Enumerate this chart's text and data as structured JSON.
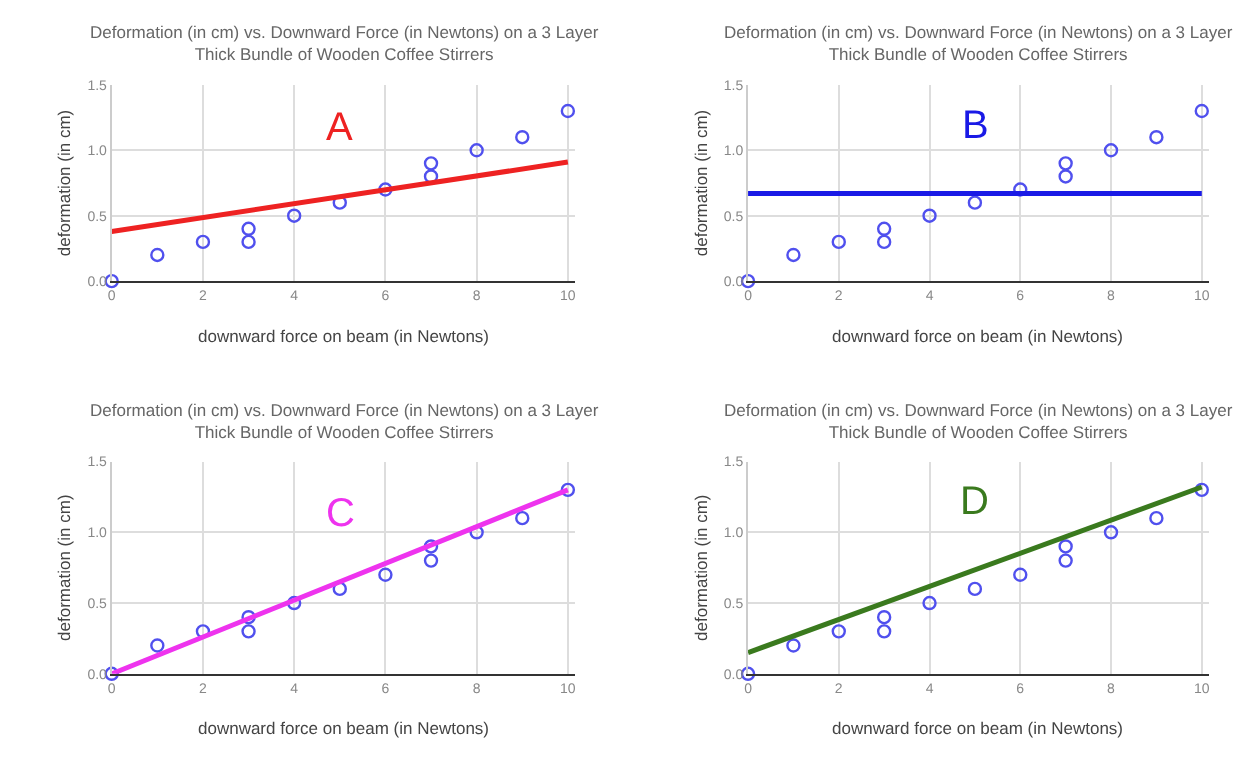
{
  "chart_data": [
    {
      "type": "scatter",
      "title": "Deformation (in cm) vs. Downward Force (in Newtons) on a 3 Layer\nThick Bundle of Wooden Coffee Stirrers",
      "xlabel": "downward force on beam (in Newtons)",
      "ylabel": "deformation (in cm)",
      "xlim": [
        0,
        10.15
      ],
      "xticks": [
        0,
        2,
        4,
        6,
        8,
        10
      ],
      "ylim": [
        0,
        1.5
      ],
      "yticks": [
        {
          "value": 0,
          "label": "0.0"
        },
        {
          "value": 0.5,
          "label": "0.5"
        },
        {
          "value": 1,
          "label": "1.0"
        },
        {
          "value": 1.5,
          "label": "1.5"
        }
      ],
      "grid": true,
      "series": [
        {
          "type": "scatter",
          "marker": "circle",
          "color": "#5050ee",
          "x": [
            0,
            1,
            2,
            3,
            3,
            4,
            5,
            6,
            7,
            7,
            8,
            9,
            10
          ],
          "values": [
            0,
            0.2,
            0.3,
            0.3,
            0.4,
            0.5,
            0.6,
            0.7,
            0.8,
            0.9,
            1.0,
            1.1,
            1.3
          ]
        },
        {
          "type": "line",
          "name": "A",
          "color": "#ee2222",
          "x": [
            0,
            10
          ],
          "values": [
            0.38,
            0.91
          ]
        }
      ]
    },
    {
      "type": "scatter",
      "title": "Deformation (in cm) vs. Downward Force (in Newtons) on a 3 Layer\nThick Bundle of Wooden Coffee Stirrers",
      "xlabel": "downward force on beam (in Newtons)",
      "ylabel": "deformation (in cm)",
      "xlim": [
        0,
        10.15
      ],
      "xticks": [
        0,
        2,
        4,
        6,
        8,
        10
      ],
      "ylim": [
        0,
        1.5
      ],
      "yticks": [
        {
          "value": 0,
          "label": "0.0"
        },
        {
          "value": 0.5,
          "label": "0.5"
        },
        {
          "value": 1,
          "label": "1.0"
        },
        {
          "value": 1.5,
          "label": "1.5"
        }
      ],
      "grid": true,
      "series": [
        {
          "type": "scatter",
          "marker": "circle",
          "color": "#5050ee",
          "x": [
            0,
            1,
            2,
            3,
            3,
            4,
            5,
            6,
            7,
            7,
            8,
            9,
            10
          ],
          "values": [
            0,
            0.2,
            0.3,
            0.3,
            0.4,
            0.5,
            0.6,
            0.7,
            0.8,
            0.9,
            1.0,
            1.1,
            1.3
          ]
        },
        {
          "type": "line",
          "name": "B",
          "color": "#1a1ae6",
          "x": [
            0,
            10
          ],
          "values": [
            0.67,
            0.67
          ]
        }
      ]
    },
    {
      "type": "scatter",
      "title": "Deformation (in cm) vs. Downward Force (in Newtons) on a 3 Layer\nThick Bundle of Wooden Coffee Stirrers",
      "xlabel": "downward force on beam (in Newtons)",
      "ylabel": "deformation (in cm)",
      "xlim": [
        0,
        10.15
      ],
      "xticks": [
        0,
        2,
        4,
        6,
        8,
        10
      ],
      "ylim": [
        0,
        1.5
      ],
      "yticks": [
        {
          "value": 0,
          "label": "0.0"
        },
        {
          "value": 0.5,
          "label": "0.5"
        },
        {
          "value": 1,
          "label": "1.0"
        },
        {
          "value": 1.5,
          "label": "1.5"
        }
      ],
      "grid": true,
      "series": [
        {
          "type": "scatter",
          "marker": "circle",
          "color": "#5050ee",
          "x": [
            0,
            1,
            2,
            3,
            3,
            4,
            5,
            6,
            7,
            7,
            8,
            9,
            10
          ],
          "values": [
            0,
            0.2,
            0.3,
            0.3,
            0.4,
            0.5,
            0.6,
            0.7,
            0.8,
            0.9,
            1.0,
            1.1,
            1.3
          ]
        },
        {
          "type": "line",
          "name": "C",
          "color": "#ee33ee",
          "x": [
            0,
            10
          ],
          "values": [
            0,
            1.3
          ]
        }
      ]
    },
    {
      "type": "scatter",
      "title": "Deformation (in cm) vs. Downward Force (in Newtons) on a 3 Layer\nThick Bundle of Wooden Coffee Stirrers",
      "xlabel": "downward force on beam (in Newtons)",
      "ylabel": "deformation (in cm)",
      "xlim": [
        0,
        10.15
      ],
      "xticks": [
        0,
        2,
        4,
        6,
        8,
        10
      ],
      "ylim": [
        0,
        1.5
      ],
      "yticks": [
        {
          "value": 0,
          "label": "0.0"
        },
        {
          "value": 0.5,
          "label": "0.5"
        },
        {
          "value": 1,
          "label": "1.0"
        },
        {
          "value": 1.5,
          "label": "1.5"
        }
      ],
      "grid": true,
      "series": [
        {
          "type": "scatter",
          "marker": "circle",
          "color": "#5050ee",
          "x": [
            0,
            1,
            2,
            3,
            3,
            4,
            5,
            6,
            7,
            7,
            8,
            9,
            10
          ],
          "values": [
            0,
            0.2,
            0.3,
            0.3,
            0.4,
            0.5,
            0.6,
            0.7,
            0.8,
            0.9,
            1.0,
            1.1,
            1.3
          ]
        },
        {
          "type": "line",
          "name": "D",
          "color": "#3a7a1e",
          "x": [
            0,
            10
          ],
          "values": [
            0.15,
            1.32
          ]
        }
      ]
    }
  ]
}
